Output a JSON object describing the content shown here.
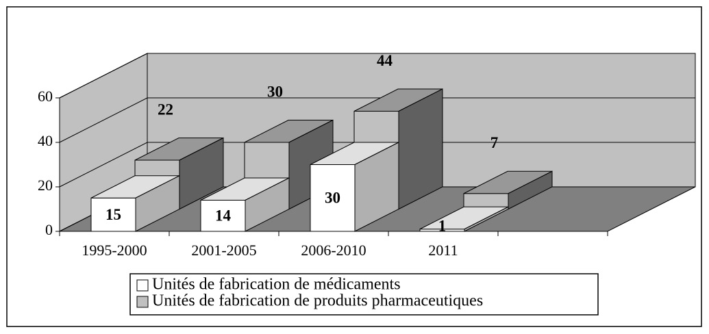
{
  "chart_data": {
    "type": "bar3d",
    "categories": [
      "1995-2000",
      "2001-2005",
      "2006-2010",
      "2011",
      null
    ],
    "series": [
      {
        "name": "Unités de fabrication de médicaments",
        "color": "#ffffff",
        "values": [
          15,
          14,
          30,
          1,
          null
        ]
      },
      {
        "name": "Unités de fabrication de produits pharmaceutiques",
        "color": "#c0c0c0",
        "values": [
          22,
          30,
          44,
          7,
          null
        ]
      }
    ],
    "ylim": [
      0,
      60
    ],
    "yticks": [
      0,
      20,
      40,
      60
    ],
    "grid": true
  }
}
